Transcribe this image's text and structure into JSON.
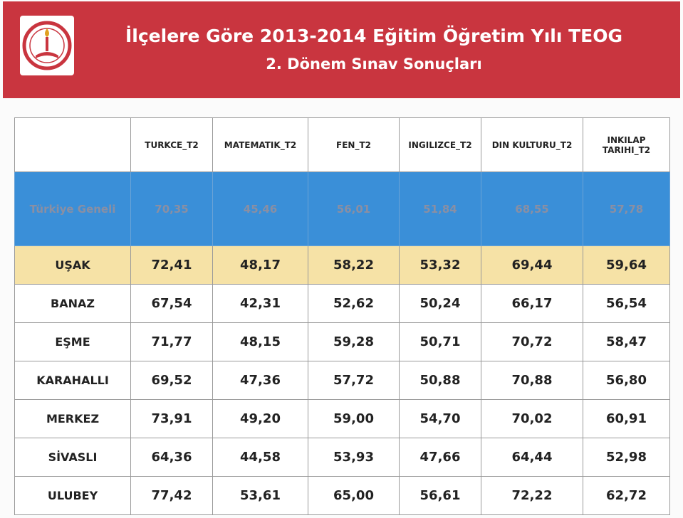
{
  "header": {
    "title_line1": "İlçelere Göre 2013-2014 Eğitim Öğretim Yılı TEOG",
    "title_line2": "2. Dönem Sınav Sonuçları"
  },
  "table": {
    "columns": [
      "TURKCE_T2",
      "MATEMATIK_T2",
      "FEN_T2",
      "INGILIZCE_T2",
      "DIN KULTURU_T2",
      "INKILAP TARIHI_T2"
    ],
    "rows": [
      {
        "name": "Türkiye Geneli",
        "values": [
          "70,35",
          "45,46",
          "56,01",
          "51,84",
          "68,55",
          "57,78"
        ]
      },
      {
        "name": "UŞAK",
        "values": [
          "72,41",
          "48,17",
          "58,22",
          "53,32",
          "69,44",
          "59,64"
        ]
      },
      {
        "name": "BANAZ",
        "values": [
          "67,54",
          "42,31",
          "52,62",
          "50,24",
          "66,17",
          "56,54"
        ]
      },
      {
        "name": "EŞME",
        "values": [
          "71,77",
          "48,15",
          "59,28",
          "50,71",
          "70,72",
          "58,47"
        ]
      },
      {
        "name": "KARAHALLI",
        "values": [
          "69,52",
          "47,36",
          "57,72",
          "50,88",
          "70,88",
          "56,80"
        ]
      },
      {
        "name": "MERKEZ",
        "values": [
          "73,91",
          "49,20",
          "59,00",
          "54,70",
          "70,02",
          "60,91"
        ]
      },
      {
        "name": "SİVASLI",
        "values": [
          "64,36",
          "44,58",
          "53,93",
          "47,66",
          "64,44",
          "52,98"
        ]
      },
      {
        "name": "ULUBEY",
        "values": [
          "77,42",
          "53,61",
          "65,00",
          "56,61",
          "72,22",
          "62,72"
        ]
      }
    ]
  }
}
